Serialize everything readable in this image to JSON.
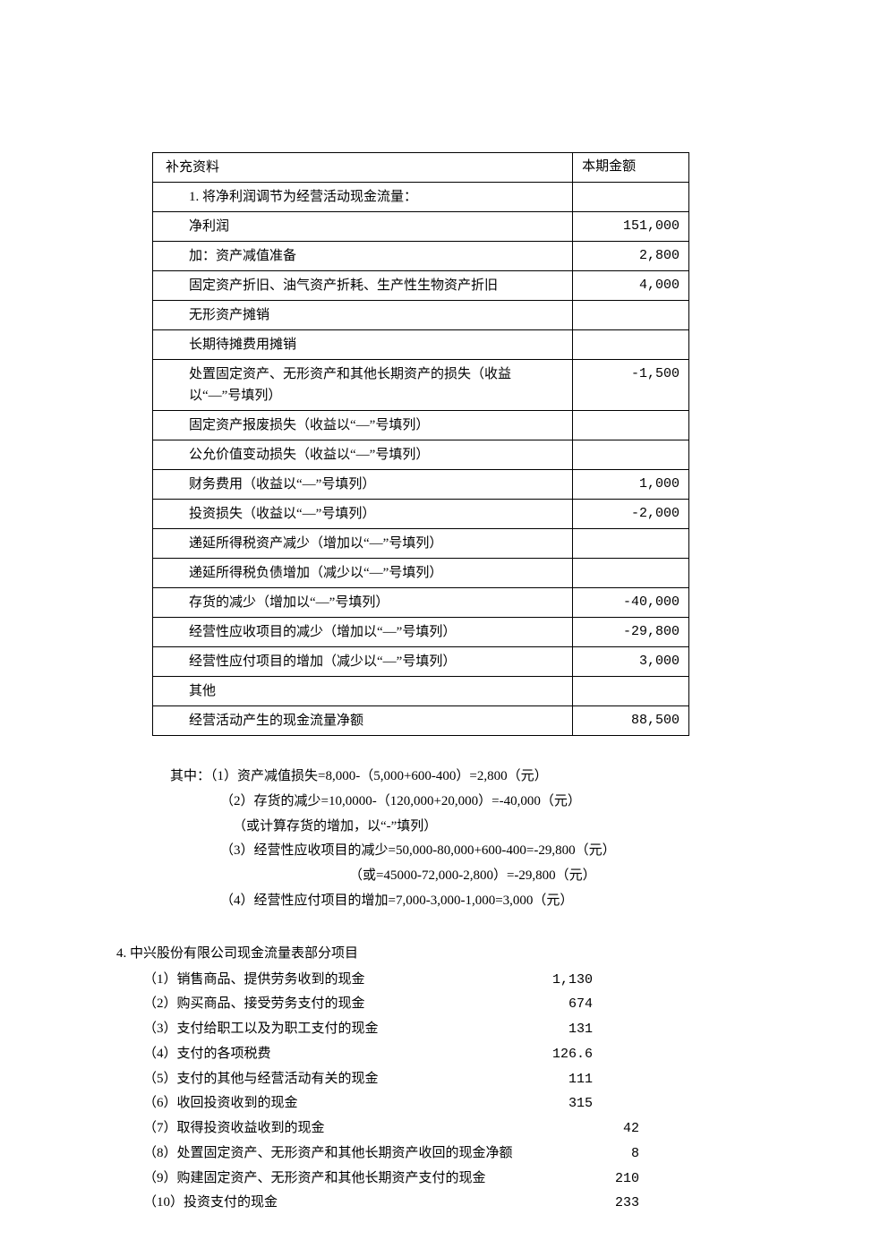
{
  "table": {
    "header": {
      "label": "补充资料",
      "value": "本期金额"
    },
    "rows": [
      {
        "label": "1. 将净利润调节为经营活动现金流量：",
        "value": "",
        "cls": "indent"
      },
      {
        "label": "净利润",
        "value": "151,000",
        "cls": "indent"
      },
      {
        "label": "加：资产减值准备",
        "value": "2,800",
        "cls": "indent"
      },
      {
        "label": "固定资产折旧、油气资产折耗、生产性生物资产折旧",
        "value": "4,000",
        "cls": "indent"
      },
      {
        "label": "无形资产摊销",
        "value": "",
        "cls": "indent"
      },
      {
        "label": "长期待摊费用摊销",
        "value": "",
        "cls": "indent"
      },
      {
        "label": "处置固定资产、无形资产和其他长期资产的损失（收益以“—”号填列）",
        "value": "-1,500",
        "cls": "indent"
      },
      {
        "label": "固定资产报废损失（收益以“—”号填列）",
        "value": "",
        "cls": "indent"
      },
      {
        "label": "公允价值变动损失（收益以“—”号填列）",
        "value": "",
        "cls": "indent"
      },
      {
        "label": "财务费用（收益以“—”号填列）",
        "value": "1,000",
        "cls": "indent"
      },
      {
        "label": "投资损失（收益以“—”号填列）",
        "value": "-2,000",
        "cls": "indent"
      },
      {
        "label": "递延所得税资产减少（增加以“—”号填列）",
        "value": "",
        "cls": "indent"
      },
      {
        "label": "递延所得税负债增加（减少以“—”号填列）",
        "value": "",
        "cls": "indent"
      },
      {
        "label": "存货的减少（增加以“—”号填列）",
        "value": "-40,000",
        "cls": "indent"
      },
      {
        "label": "经营性应收项目的减少（增加以“—”号填列）",
        "value": "-29,800",
        "cls": "indent"
      },
      {
        "label": "经营性应付项目的增加（减少以“—”号填列）",
        "value": "3,000",
        "cls": "indent"
      },
      {
        "label": "其他",
        "value": "",
        "cls": "indent"
      },
      {
        "label": "经营活动产生的现金流量净额",
        "value": "88,500",
        "cls": "indent"
      }
    ]
  },
  "notes": [
    {
      "cls": "l1",
      "text": "其中：（1）资产减值损失=8,000-（5,000+600-400）=2,800（元）"
    },
    {
      "cls": "l2",
      "text": "（2）存货的减少=10,0000-（120,000+20,000）=-40,000（元）"
    },
    {
      "cls": "l2b",
      "text": "（或计算存货的增加，以“-”填列）"
    },
    {
      "cls": "l2",
      "text": "（3）经营性应收项目的减少=50,000-80,000+600-400=-29,800（元）"
    },
    {
      "cls": "l3",
      "text": "（或=45000-72,000-2,800）=-29,800（元）"
    },
    {
      "cls": "l2",
      "text": "（4）经营性应付项目的增加=7,000-3,000-1,000=3,000（元）"
    }
  ],
  "section": {
    "title": "4. 中兴股份有限公司现金流量表部分项目",
    "items": [
      {
        "label": "（1）销售商品、提供劳务收到的现金",
        "value": "1,130",
        "grp": "a"
      },
      {
        "label": "（2）购买商品、接受劳务支付的现金",
        "value": "674",
        "grp": "a"
      },
      {
        "label": "（3）支付给职工以及为职工支付的现金",
        "value": "131",
        "grp": "a"
      },
      {
        "label": "（4）支付的各项税费",
        "value": "126.6",
        "grp": "a"
      },
      {
        "label": "（5）支付的其他与经营活动有关的现金",
        "value": "111",
        "grp": "a"
      },
      {
        "label": "（6）收回投资收到的现金",
        "value": "315",
        "grp": "a"
      },
      {
        "label": "（7）取得投资收益收到的现金",
        "value": "42",
        "grp": "b"
      },
      {
        "label": "（8）处置固定资产、无形资产和其他长期资产收回的现金净额",
        "value": "8",
        "grp": "b"
      },
      {
        "label": "（9）购建固定资产、无形资产和其他长期资产支付的现金",
        "value": "210",
        "grp": "b"
      },
      {
        "label": "（10）投资支付的现金",
        "value": "233",
        "grp": "b"
      }
    ]
  }
}
